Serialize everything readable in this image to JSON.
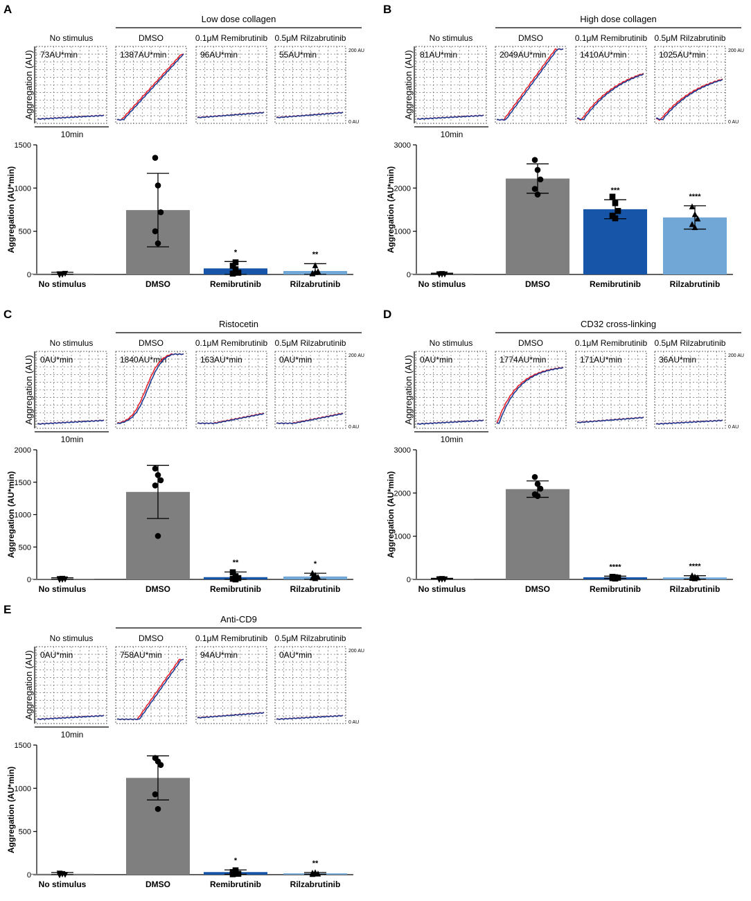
{
  "figure": {
    "colors": {
      "trace_red": "#e8212b",
      "trace_blue": "#1f3c94",
      "bar_no_stimulus": "#7f7f7f",
      "bar_dmso": "#7f7f7f",
      "bar_remibrutinib": "#1655a8",
      "bar_rilzabrutinib": "#71a7d6",
      "axis": "#000000"
    },
    "shared": {
      "trace_ylabel": "Aggregation (AU)",
      "scale_bar_label": "10min",
      "trace_top_label": "200 AU",
      "trace_bottom_label": "0 AU",
      "bar_ylabel": "Aggregation (AU*min)",
      "condition_labels": [
        "No stimulus",
        "DMSO",
        "0.1μM Remibrutinib",
        "0.5μM Rilzabrutinib"
      ]
    }
  },
  "chart_data": [
    {
      "panel": "A",
      "title": "Low dose collagen",
      "type": "bar",
      "traces": [
        {
          "condition": "No stimulus",
          "auc_label": "73AU*min",
          "curve": "flat"
        },
        {
          "condition": "DMSO",
          "auc_label": "1387AU*min",
          "curve": "high-linear"
        },
        {
          "condition": "0.1μM Remibrutinib",
          "auc_label": "96AU*min",
          "curve": "flat-low"
        },
        {
          "condition": "0.5μM Rilzabrutinib",
          "auc_label": "55AU*min",
          "curve": "flat-low"
        }
      ],
      "categories": [
        "No stimulus",
        "DMSO",
        "Remibrutinib",
        "Rilzabrutinib"
      ],
      "values": [
        10,
        745,
        70,
        40
      ],
      "sd": [
        15,
        425,
        80,
        85
      ],
      "points": [
        [
          10,
          5,
          15,
          0,
          5
        ],
        [
          1350,
          1030,
          720,
          500,
          360
        ],
        [
          100,
          60,
          20,
          10,
          140
        ],
        [
          10,
          20,
          30,
          5,
          100
        ]
      ],
      "markers": [
        "triangle-down",
        "circle",
        "square",
        "triangle-up"
      ],
      "significance": [
        "",
        "",
        "*",
        "**"
      ],
      "ylim": [
        0,
        1500
      ],
      "yticks": [
        0,
        500,
        1000,
        1500
      ],
      "ylabel": "Aggregation (AU*min)"
    },
    {
      "panel": "B",
      "title": "High dose collagen",
      "type": "bar",
      "traces": [
        {
          "condition": "No stimulus",
          "auc_label": "81AU*min",
          "curve": "flat"
        },
        {
          "condition": "DMSO",
          "auc_label": "2049AU*min",
          "curve": "high-linear-sat"
        },
        {
          "condition": "0.1μM Remibrutinib",
          "auc_label": "1410AU*min",
          "curve": "mid-rise"
        },
        {
          "condition": "0.5μM Rilzabrutinib",
          "auc_label": "1025AU*min",
          "curve": "mid-rise-low"
        }
      ],
      "categories": [
        "No stimulus",
        "DMSO",
        "Remibrutinib",
        "Rilzabrutinib"
      ],
      "values": [
        20,
        2220,
        1510,
        1320
      ],
      "sd": [
        10,
        340,
        220,
        270
      ],
      "points": [
        [
          20,
          10,
          15,
          5,
          25
        ],
        [
          2650,
          2420,
          2200,
          1980,
          1850
        ],
        [
          1800,
          1650,
          1470,
          1360,
          1300
        ],
        [
          1560,
          1380,
          1280,
          1150,
          1080
        ]
      ],
      "markers": [
        "triangle-down",
        "circle",
        "square",
        "triangle-up"
      ],
      "significance": [
        "",
        "",
        "***",
        "****"
      ],
      "ylim": [
        0,
        3000
      ],
      "yticks": [
        0,
        1000,
        2000,
        3000
      ],
      "ylabel": "Aggregation (AU*min)"
    },
    {
      "panel": "C",
      "title": "Ristocetin",
      "type": "bar",
      "traces": [
        {
          "condition": "No stimulus",
          "auc_label": "0AU*min",
          "curve": "flat"
        },
        {
          "condition": "DMSO",
          "auc_label": "1840AU*min",
          "curve": "sigmoid-full"
        },
        {
          "condition": "0.1μM Remibrutinib",
          "auc_label": "163AU*min",
          "curve": "slight-rise"
        },
        {
          "condition": "0.5μM Rilzabrutinib",
          "auc_label": "0AU*min",
          "curve": "slight-rise"
        }
      ],
      "categories": [
        "No stimulus",
        "DMSO",
        "Remibrutinib",
        "Rilzabrutinib"
      ],
      "values": [
        10,
        1350,
        35,
        45
      ],
      "sd": [
        15,
        410,
        80,
        50
      ],
      "points": [
        [
          15,
          5,
          10,
          0,
          20
        ],
        [
          1710,
          1610,
          1530,
          1450,
          670
        ],
        [
          110,
          50,
          20,
          10,
          0
        ],
        [
          90,
          60,
          30,
          20,
          10
        ]
      ],
      "markers": [
        "triangle-down",
        "circle",
        "square",
        "triangle-up"
      ],
      "significance": [
        "",
        "",
        "**",
        "*"
      ],
      "ylim": [
        0,
        2000
      ],
      "yticks": [
        0,
        500,
        1000,
        1500,
        2000
      ],
      "ylabel": "Aggregation (AU*min)"
    },
    {
      "panel": "D",
      "title": "CD32 cross-linking",
      "type": "bar",
      "traces": [
        {
          "condition": "No stimulus",
          "auc_label": "0AU*min",
          "curve": "flat"
        },
        {
          "condition": "DMSO",
          "auc_label": "1774AU*min",
          "curve": "saturating"
        },
        {
          "condition": "0.1μM Remibrutinib",
          "auc_label": "171AU*min",
          "curve": "flat-low"
        },
        {
          "condition": "0.5μM Rilzabrutinib",
          "auc_label": "36AU*min",
          "curve": "flat"
        }
      ],
      "categories": [
        "No stimulus",
        "DMSO",
        "Remibrutinib",
        "Rilzabrutinib"
      ],
      "values": [
        15,
        2090,
        50,
        45
      ],
      "sd": [
        10,
        190,
        25,
        40
      ],
      "points": [
        [
          20,
          10,
          15,
          5,
          25
        ],
        [
          2370,
          2210,
          2100,
          1970,
          1930
        ],
        [
          60,
          50,
          40,
          30,
          20
        ],
        [
          80,
          50,
          30,
          20,
          10
        ]
      ],
      "markers": [
        "triangle-down",
        "circle",
        "square",
        "triangle-up"
      ],
      "significance": [
        "",
        "",
        "****",
        "****"
      ],
      "ylim": [
        0,
        3000
      ],
      "yticks": [
        0,
        1000,
        2000,
        3000
      ],
      "ylabel": "Aggregation (AU*min)"
    },
    {
      "panel": "E",
      "title": "Anti-CD9",
      "type": "bar",
      "traces": [
        {
          "condition": "No stimulus",
          "auc_label": "0AU*min",
          "curve": "flat"
        },
        {
          "condition": "DMSO",
          "auc_label": "758AU*min",
          "curve": "late-rise"
        },
        {
          "condition": "0.1μM Remibrutinib",
          "auc_label": "94AU*min",
          "curve": "flat-low"
        },
        {
          "condition": "0.5μM Rilzabrutinib",
          "auc_label": "0AU*min",
          "curve": "flat"
        }
      ],
      "categories": [
        "No stimulus",
        "DMSO",
        "Remibrutinib",
        "Rilzabrutinib"
      ],
      "values": [
        10,
        1120,
        30,
        15
      ],
      "sd": [
        15,
        255,
        25,
        10
      ],
      "points": [
        [
          20,
          10,
          5,
          0,
          15
        ],
        [
          1350,
          1310,
          1270,
          930,
          760
        ],
        [
          30,
          20,
          10,
          5,
          50
        ],
        [
          15,
          10,
          5,
          0,
          20
        ]
      ],
      "markers": [
        "triangle-down",
        "circle",
        "square",
        "triangle-up"
      ],
      "significance": [
        "",
        "",
        "*",
        "**"
      ],
      "ylim": [
        0,
        1500
      ],
      "yticks": [
        0,
        500,
        1000,
        1500
      ],
      "ylabel": "Aggregation (AU*min)"
    }
  ]
}
